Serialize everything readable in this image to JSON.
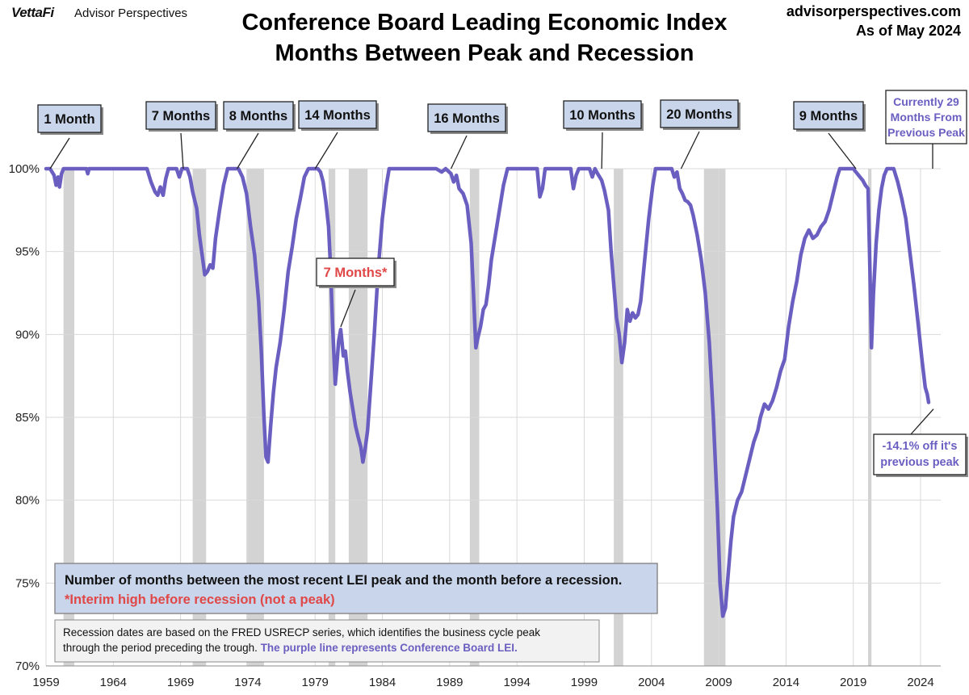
{
  "header": {
    "logo": "VettaFi",
    "logo_sub": "Advisor Perspectives",
    "title_line1": "Conference Board Leading Economic Index",
    "title_line2": "Months Between Peak and Recession",
    "site": "advisorperspectives.com",
    "as_of": "As of May 2024"
  },
  "chart_data": {
    "type": "line",
    "title": "Conference Board Leading Economic Index — Months Between Peak and Recession",
    "xlabel": "",
    "ylabel": "",
    "xlim": [
      1959,
      2025.5
    ],
    "ylim": [
      70,
      100
    ],
    "xticks": [
      "1959",
      "1964",
      "1969",
      "1974",
      "1979",
      "1984",
      "1989",
      "1994",
      "1999",
      "2004",
      "2009",
      "2014",
      "2019",
      "2024"
    ],
    "yticks": [
      "70%",
      "75%",
      "80%",
      "85%",
      "90%",
      "95%",
      "100%"
    ],
    "grid": true,
    "line_color": "#6a5fc1",
    "recessions": [
      [
        1960.3,
        1961.1
      ],
      [
        1969.9,
        1970.9
      ],
      [
        1973.9,
        1975.2
      ],
      [
        1980.0,
        1980.5
      ],
      [
        1981.5,
        1982.9
      ],
      [
        1990.5,
        1991.2
      ],
      [
        2001.2,
        2001.9
      ],
      [
        2007.9,
        2009.5
      ],
      [
        2020.1,
        2020.35
      ]
    ],
    "series": [
      {
        "name": "Conference Board LEI (% of previous peak)",
        "points": [
          [
            1959.0,
            100
          ],
          [
            1959.3,
            100
          ],
          [
            1959.6,
            99.6
          ],
          [
            1959.75,
            99.0
          ],
          [
            1959.9,
            99.5
          ],
          [
            1960.0,
            98.9
          ],
          [
            1960.15,
            99.7
          ],
          [
            1960.3,
            100
          ],
          [
            1962.0,
            100
          ],
          [
            1962.1,
            99.7
          ],
          [
            1962.2,
            100
          ],
          [
            1966.5,
            100
          ],
          [
            1966.8,
            99.2
          ],
          [
            1967.1,
            98.6
          ],
          [
            1967.3,
            98.4
          ],
          [
            1967.5,
            98.9
          ],
          [
            1967.7,
            98.4
          ],
          [
            1967.9,
            99.4
          ],
          [
            1968.1,
            100
          ],
          [
            1968.7,
            100
          ],
          [
            1968.9,
            99.5
          ],
          [
            1969.1,
            100
          ],
          [
            1969.5,
            100
          ],
          [
            1969.7,
            99.5
          ],
          [
            1969.9,
            98.6
          ],
          [
            1970.2,
            97.6
          ],
          [
            1970.4,
            96.0
          ],
          [
            1970.6,
            94.8
          ],
          [
            1970.8,
            93.6
          ],
          [
            1971.0,
            93.8
          ],
          [
            1971.2,
            94.2
          ],
          [
            1971.4,
            94.0
          ],
          [
            1971.6,
            95.8
          ],
          [
            1971.9,
            97.5
          ],
          [
            1972.2,
            99.0
          ],
          [
            1972.5,
            100
          ],
          [
            1973.3,
            100
          ],
          [
            1973.6,
            99.5
          ],
          [
            1973.9,
            98.5
          ],
          [
            1974.2,
            96.5
          ],
          [
            1974.5,
            94.8
          ],
          [
            1974.8,
            92.0
          ],
          [
            1975.0,
            89.0
          ],
          [
            1975.2,
            85.0
          ],
          [
            1975.35,
            82.6
          ],
          [
            1975.5,
            82.3
          ],
          [
            1975.7,
            84.5
          ],
          [
            1975.9,
            86.5
          ],
          [
            1976.1,
            88.0
          ],
          [
            1976.4,
            89.5
          ],
          [
            1976.7,
            91.5
          ],
          [
            1977.0,
            93.8
          ],
          [
            1977.3,
            95.3
          ],
          [
            1977.6,
            97.0
          ],
          [
            1977.9,
            98.2
          ],
          [
            1978.2,
            99.5
          ],
          [
            1978.5,
            100
          ],
          [
            1979.2,
            100
          ],
          [
            1979.4,
            99.8
          ],
          [
            1979.6,
            99.2
          ],
          [
            1979.8,
            98.0
          ],
          [
            1980.0,
            96.5
          ],
          [
            1980.15,
            94.0
          ],
          [
            1980.3,
            90.5
          ],
          [
            1980.5,
            87.0
          ],
          [
            1980.6,
            88.0
          ],
          [
            1980.75,
            89.6
          ],
          [
            1980.9,
            90.3
          ],
          [
            1981.0,
            89.5
          ],
          [
            1981.1,
            88.7
          ],
          [
            1981.25,
            89.0
          ],
          [
            1981.4,
            87.8
          ],
          [
            1981.6,
            86.5
          ],
          [
            1981.8,
            85.5
          ],
          [
            1982.0,
            84.5
          ],
          [
            1982.2,
            83.8
          ],
          [
            1982.4,
            83.2
          ],
          [
            1982.55,
            82.3
          ],
          [
            1982.7,
            83.0
          ],
          [
            1982.9,
            84.2
          ],
          [
            1983.1,
            86.5
          ],
          [
            1983.4,
            90.0
          ],
          [
            1983.7,
            94.0
          ],
          [
            1984.0,
            97.0
          ],
          [
            1984.3,
            99.0
          ],
          [
            1984.5,
            100
          ],
          [
            1988.0,
            100
          ],
          [
            1988.4,
            99.8
          ],
          [
            1988.7,
            100
          ],
          [
            1989.1,
            99.7
          ],
          [
            1989.3,
            99.2
          ],
          [
            1989.5,
            99.6
          ],
          [
            1989.7,
            98.8
          ],
          [
            1990.0,
            98.5
          ],
          [
            1990.3,
            97.8
          ],
          [
            1990.6,
            95.5
          ],
          [
            1990.8,
            92.0
          ],
          [
            1990.95,
            89.2
          ],
          [
            1991.1,
            89.8
          ],
          [
            1991.3,
            90.5
          ],
          [
            1991.5,
            91.5
          ],
          [
            1991.7,
            91.8
          ],
          [
            1991.9,
            93.0
          ],
          [
            1992.1,
            94.5
          ],
          [
            1992.4,
            96.0
          ],
          [
            1992.7,
            97.5
          ],
          [
            1993.0,
            99.0
          ],
          [
            1993.3,
            100
          ],
          [
            1995.5,
            100
          ],
          [
            1995.7,
            98.3
          ],
          [
            1995.9,
            98.8
          ],
          [
            1996.1,
            100
          ],
          [
            1998.0,
            100
          ],
          [
            1998.2,
            98.8
          ],
          [
            1998.4,
            99.6
          ],
          [
            1998.6,
            100
          ],
          [
            1999.4,
            100
          ],
          [
            1999.6,
            99.5
          ],
          [
            1999.8,
            100
          ],
          [
            2000.0,
            99.7
          ],
          [
            2000.3,
            99.3
          ],
          [
            2000.5,
            98.7
          ],
          [
            2000.8,
            97.5
          ],
          [
            2001.0,
            95.0
          ],
          [
            2001.2,
            93.0
          ],
          [
            2001.4,
            91.0
          ],
          [
            2001.6,
            90.0
          ],
          [
            2001.8,
            88.3
          ],
          [
            2002.0,
            89.5
          ],
          [
            2002.2,
            91.5
          ],
          [
            2002.4,
            90.8
          ],
          [
            2002.6,
            91.3
          ],
          [
            2002.8,
            91.0
          ],
          [
            2003.0,
            91.2
          ],
          [
            2003.2,
            92.0
          ],
          [
            2003.5,
            94.5
          ],
          [
            2003.8,
            97.0
          ],
          [
            2004.1,
            99.0
          ],
          [
            2004.3,
            100
          ],
          [
            2005.5,
            100
          ],
          [
            2005.7,
            99.5
          ],
          [
            2005.9,
            99.8
          ],
          [
            2006.1,
            98.8
          ],
          [
            2006.3,
            98.5
          ],
          [
            2006.5,
            98.1
          ],
          [
            2006.7,
            98.0
          ],
          [
            2006.9,
            97.8
          ],
          [
            2007.1,
            97.2
          ],
          [
            2007.4,
            96.0
          ],
          [
            2007.7,
            94.5
          ],
          [
            2008.0,
            92.5
          ],
          [
            2008.3,
            89.5
          ],
          [
            2008.6,
            85.0
          ],
          [
            2008.9,
            79.5
          ],
          [
            2009.1,
            75.0
          ],
          [
            2009.3,
            73.0
          ],
          [
            2009.5,
            73.5
          ],
          [
            2009.7,
            75.5
          ],
          [
            2009.9,
            77.5
          ],
          [
            2010.1,
            79.0
          ],
          [
            2010.4,
            80.0
          ],
          [
            2010.7,
            80.5
          ],
          [
            2011.0,
            81.5
          ],
          [
            2011.3,
            82.5
          ],
          [
            2011.6,
            83.5
          ],
          [
            2011.9,
            84.2
          ],
          [
            2012.1,
            85.0
          ],
          [
            2012.4,
            85.8
          ],
          [
            2012.7,
            85.5
          ],
          [
            2013.0,
            86.0
          ],
          [
            2013.3,
            86.8
          ],
          [
            2013.6,
            87.8
          ],
          [
            2013.9,
            88.5
          ],
          [
            2014.2,
            90.5
          ],
          [
            2014.5,
            92.0
          ],
          [
            2014.8,
            93.2
          ],
          [
            2015.1,
            94.8
          ],
          [
            2015.4,
            95.8
          ],
          [
            2015.7,
            96.3
          ],
          [
            2016.0,
            95.8
          ],
          [
            2016.3,
            96.0
          ],
          [
            2016.6,
            96.5
          ],
          [
            2016.9,
            96.8
          ],
          [
            2017.2,
            97.5
          ],
          [
            2017.5,
            98.5
          ],
          [
            2017.8,
            99.5
          ],
          [
            2018.0,
            100
          ],
          [
            2019.0,
            100
          ],
          [
            2019.2,
            99.8
          ],
          [
            2019.5,
            99.5
          ],
          [
            2019.7,
            99.3
          ],
          [
            2019.9,
            99.0
          ],
          [
            2020.1,
            98.8
          ],
          [
            2020.25,
            93.5
          ],
          [
            2020.35,
            89.2
          ],
          [
            2020.5,
            92.5
          ],
          [
            2020.7,
            95.5
          ],
          [
            2020.9,
            97.5
          ],
          [
            2021.1,
            98.8
          ],
          [
            2021.3,
            99.6
          ],
          [
            2021.5,
            100
          ],
          [
            2022.0,
            100
          ],
          [
            2022.3,
            99.2
          ],
          [
            2022.6,
            98.2
          ],
          [
            2022.9,
            97.0
          ],
          [
            2023.2,
            95.0
          ],
          [
            2023.5,
            93.0
          ],
          [
            2023.8,
            90.8
          ],
          [
            2024.1,
            88.5
          ],
          [
            2024.35,
            86.8
          ],
          [
            2024.5,
            86.4
          ],
          [
            2024.6,
            85.9
          ]
        ]
      }
    ],
    "annotations": [
      {
        "text": "1 Month",
        "x": 1959.3
      },
      {
        "text": "7 Months",
        "x": 1969.2
      },
      {
        "text": "8 Months",
        "x": 1973.2
      },
      {
        "text": "14 Months",
        "x": 1979.0
      },
      {
        "text": "7 Months*",
        "x": 1980.9
      },
      {
        "text": "16 Months",
        "x": 1989.1
      },
      {
        "text": "10 Months",
        "x": 2000.3
      },
      {
        "text": "20 Months",
        "x": 2006.2
      },
      {
        "text": "9 Months",
        "x": 2019.2
      },
      {
        "text": "Currently 29 Months From Previous Peak",
        "x": 2024.9
      },
      {
        "text": "-14.1% off it's previous peak",
        "x": 2024.6
      }
    ],
    "legend_box": {
      "line1": "Number of months between the most recent LEI peak and the month before a recession.",
      "line2": "*Interim high before recession (not a peak)"
    },
    "footnote": {
      "text1": "Recession dates are based on the FRED USRECP series, which identifies the business cycle peak",
      "text2": "through the period preceding the trough. ",
      "text3": "The purple line represents Conference Board LEI."
    }
  }
}
